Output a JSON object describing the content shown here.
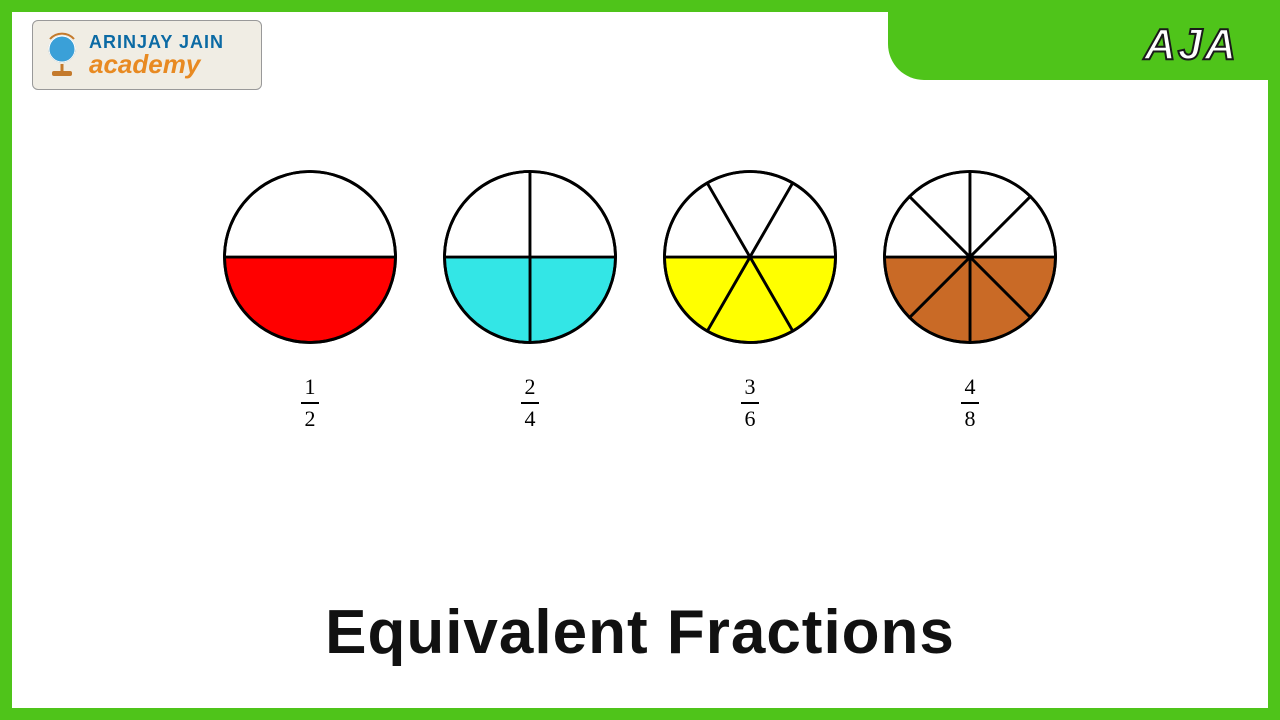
{
  "brand": {
    "logo_line1": "ARINJAY JAIN",
    "logo_line2": "academy",
    "short": "AJA",
    "frame_color": "#4fc41a",
    "logo_bg": "#f0ede4",
    "logo_text1_color": "#0b6aa4",
    "logo_text2_color": "#e88a22"
  },
  "title": "Equivalent Fractions",
  "diagram": {
    "type": "pie-fraction",
    "circle_radius": 90,
    "stroke_color": "#000000",
    "stroke_width": 3,
    "background": "#ffffff",
    "items": [
      {
        "numerator": "1",
        "denominator": "2",
        "slices": 2,
        "filled": 1,
        "start_angle": 0,
        "fill_color": "#ff0000"
      },
      {
        "numerator": "2",
        "denominator": "4",
        "slices": 4,
        "filled": 2,
        "start_angle": 0,
        "fill_color": "#33e6e6"
      },
      {
        "numerator": "3",
        "denominator": "6",
        "slices": 6,
        "filled": 3,
        "start_angle": 0,
        "fill_color": "#ffff00"
      },
      {
        "numerator": "4",
        "denominator": "8",
        "slices": 8,
        "filled": 4,
        "start_angle": 0,
        "fill_color": "#c96a26"
      }
    ]
  }
}
